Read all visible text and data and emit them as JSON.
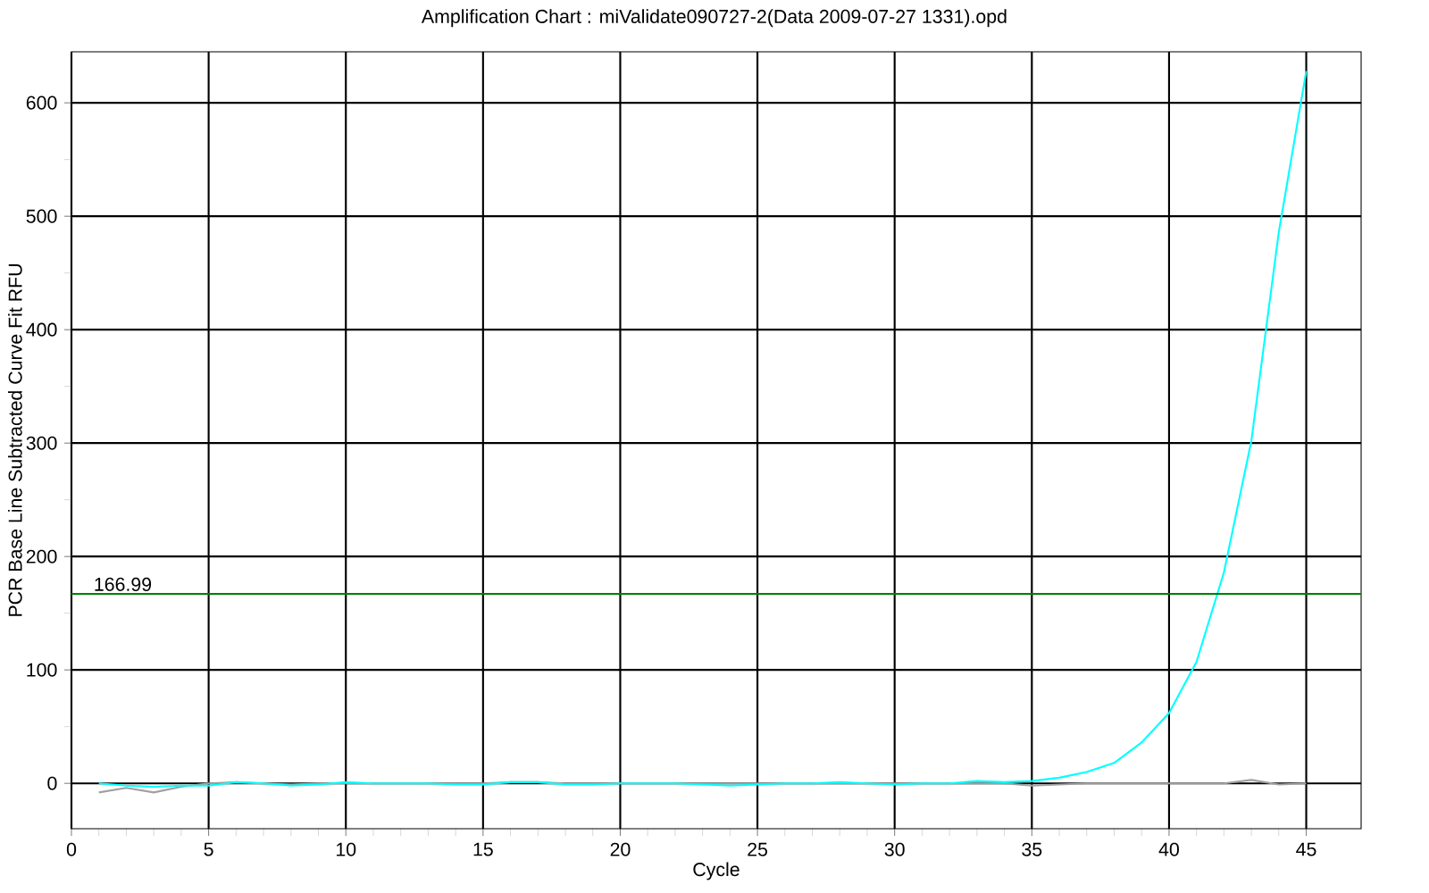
{
  "chart_data": {
    "type": "line",
    "title": "Amplification Chart : miValidate090727-2(Data 2009-07-27 1331).opd",
    "xlabel": "Cycle",
    "ylabel": "PCR Base Line Subtracted Curve Fit RFU",
    "x": [
      1,
      2,
      3,
      4,
      5,
      6,
      7,
      8,
      9,
      10,
      11,
      12,
      13,
      14,
      15,
      16,
      17,
      18,
      19,
      20,
      21,
      22,
      23,
      24,
      25,
      26,
      27,
      28,
      29,
      30,
      31,
      32,
      33,
      34,
      35,
      36,
      37,
      38,
      39,
      40,
      41,
      42,
      43,
      44,
      45
    ],
    "series": [
      {
        "color": "#a0a0a0",
        "values": [
          -8,
          -4,
          -8,
          -3,
          0,
          1,
          0,
          -1,
          0,
          0,
          0,
          0,
          0,
          0,
          0,
          1,
          1,
          0,
          0,
          0,
          0,
          0,
          0,
          0,
          0,
          0,
          0,
          0,
          0,
          0,
          0,
          0,
          0,
          0,
          -2,
          -1,
          0,
          0,
          0,
          0,
          0,
          0,
          3,
          -1,
          0
        ]
      },
      {
        "color": "#00ffff",
        "values": [
          0,
          -2,
          -3,
          -2,
          -2,
          1,
          0,
          -2,
          -1,
          1,
          0,
          0,
          0,
          -1,
          -1,
          1,
          1,
          -1,
          -1,
          0,
          0,
          0,
          -1,
          -2,
          -1,
          0,
          0,
          1,
          0,
          -1,
          0,
          0,
          2,
          1,
          2,
          5,
          10,
          18,
          36,
          62,
          107,
          186,
          302,
          486,
          628
        ]
      }
    ],
    "xlim": [
      0,
      47
    ],
    "ylim": [
      -40,
      645
    ],
    "xticks": [
      0,
      5,
      10,
      15,
      20,
      25,
      30,
      35,
      40,
      45
    ],
    "yticks": [
      0,
      100,
      200,
      300,
      400,
      500,
      600
    ],
    "ref_lines": [
      {
        "axis": "y",
        "value": 166.99,
        "label": "166.99",
        "color": "#008000"
      }
    ],
    "grid": true,
    "marker": "none",
    "line_style": "solid"
  }
}
